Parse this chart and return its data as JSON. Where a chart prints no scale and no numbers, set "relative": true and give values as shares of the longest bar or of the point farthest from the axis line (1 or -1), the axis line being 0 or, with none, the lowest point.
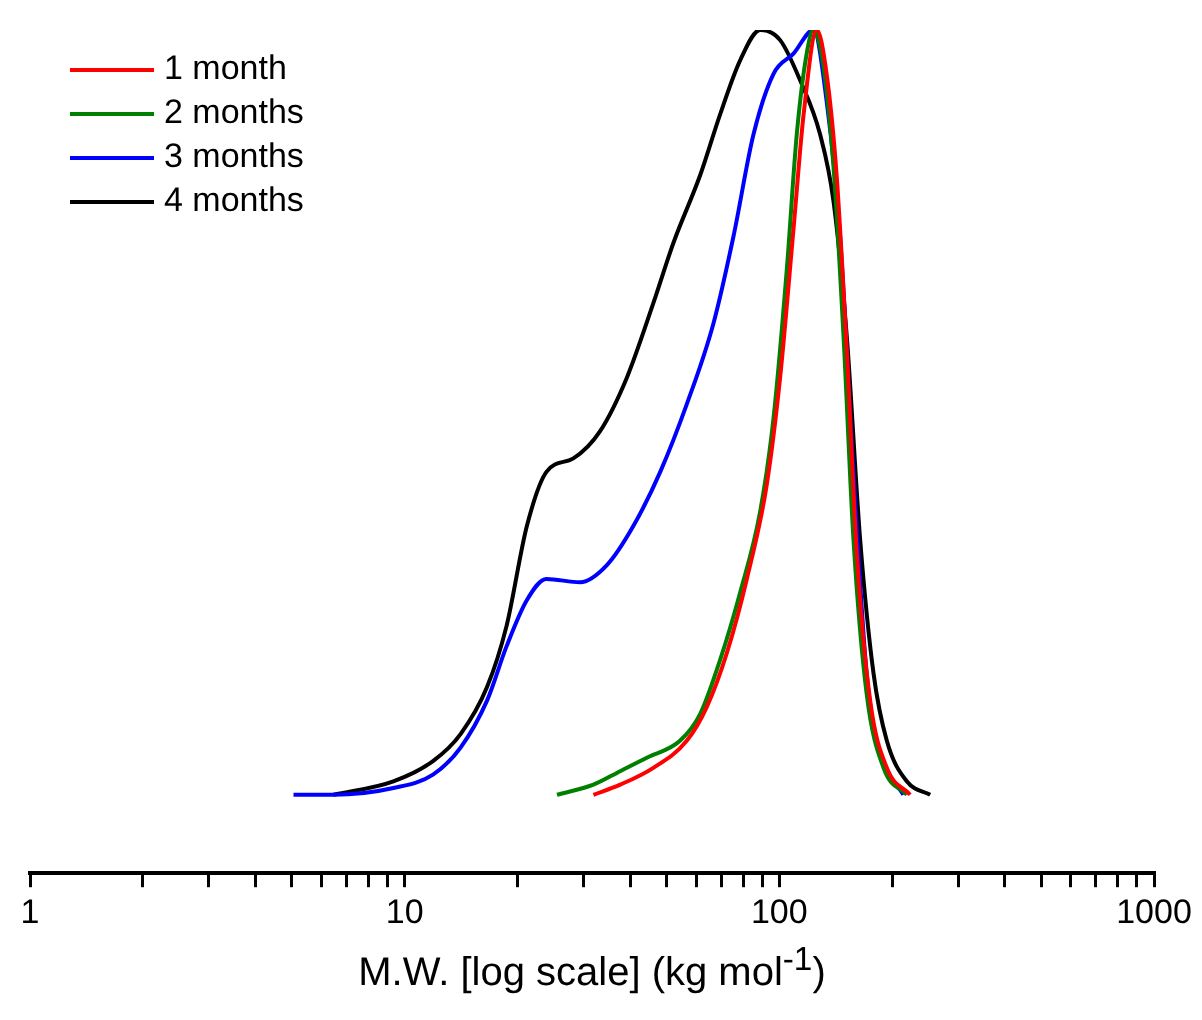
{
  "chart_data": {
    "type": "line",
    "relative": true,
    "xlabel": "M.W. [log scale] (kg mol$^{-1}$)",
    "log": "x",
    "xlim": [
      1,
      1000
    ],
    "xticks": [
      1,
      {
        "value": 2,
        "label": null
      },
      {
        "value": 3,
        "label": null
      },
      {
        "value": 4,
        "label": null
      },
      {
        "value": 5,
        "label": null
      },
      {
        "value": 6,
        "label": null
      },
      {
        "value": 7,
        "label": null
      },
      {
        "value": 8,
        "label": null
      },
      {
        "value": 9,
        "label": null
      },
      10,
      {
        "value": 20,
        "label": null
      },
      {
        "value": 30,
        "label": null
      },
      {
        "value": 40,
        "label": null
      },
      {
        "value": 50,
        "label": null
      },
      {
        "value": 60,
        "label": null
      },
      {
        "value": 70,
        "label": null
      },
      {
        "value": 80,
        "label": null
      },
      {
        "value": 90,
        "label": null
      },
      100,
      {
        "value": 200,
        "label": null
      },
      {
        "value": 300,
        "label": null
      },
      {
        "value": 400,
        "label": null
      },
      {
        "value": 500,
        "label": null
      },
      {
        "value": 600,
        "label": null
      },
      {
        "value": 700,
        "label": null
      },
      {
        "value": 800,
        "label": null
      },
      {
        "value": 900,
        "label": null
      },
      1000
    ],
    "grid": false,
    "legend": "top left",
    "marker": "none",
    "line_style": "solid",
    "tick_labels": "x",
    "series": [
      {
        "name": "1 month",
        "color": "#ff0000",
        "x": [
          31.9,
          37.6,
          46.1,
          56.6,
          64.0,
          72.4,
          81.9,
          92.5,
          100.5,
          109.1,
          116.1,
          125.9,
          133.7,
          142.2,
          151.4,
          160.9,
          174.7,
          193.6,
          223.4
        ],
        "values": [
          0.093,
          0.105,
          0.125,
          0.157,
          0.197,
          0.261,
          0.349,
          0.46,
          0.588,
          0.764,
          0.9,
          1.0,
          0.948,
          0.828,
          0.62,
          0.381,
          0.205,
          0.125,
          0.093
        ]
      },
      {
        "name": "2 months",
        "color": "#008000",
        "x": [
          25.5,
          31.9,
          37.6,
          44.3,
          54.3,
          61.5,
          69.5,
          78.6,
          88.9,
          96.5,
          104.7,
          111.3,
          118.3,
          123.4,
          131.2,
          139.6,
          148.4,
          157.7,
          171.0,
          189.7,
          218.9
        ],
        "values": [
          0.093,
          0.105,
          0.121,
          0.137,
          0.157,
          0.189,
          0.253,
          0.333,
          0.429,
          0.54,
          0.716,
          0.876,
          0.972,
          1.0,
          0.956,
          0.836,
          0.636,
          0.396,
          0.213,
          0.125,
          0.093
        ]
      },
      {
        "name": "3 months",
        "color": "#0000ff",
        "x": [
          5.05,
          6.45,
          9.33,
          11.9,
          14.1,
          16.6,
          18.7,
          21.2,
          23.9,
          29.4,
          34.6,
          40.8,
          48.1,
          56.6,
          66.7,
          75.5,
          85.3,
          96.5,
          109.1,
          123.4,
          133.7,
          145.2,
          157.7,
          171.0,
          185.8,
          214.4
        ],
        "values": [
          0.093,
          0.093,
          0.101,
          0.117,
          0.149,
          0.205,
          0.269,
          0.324,
          0.349,
          0.345,
          0.365,
          0.412,
          0.476,
          0.556,
          0.652,
          0.756,
          0.876,
          0.948,
          0.972,
          1.0,
          0.916,
          0.756,
          0.476,
          0.237,
          0.141,
          0.093
        ]
      },
      {
        "name": "4 months",
        "color": "#000000",
        "x": [
          6.45,
          9.33,
          11.9,
          14.1,
          16.6,
          18.7,
          21.2,
          23.9,
          28.2,
          33.2,
          39.2,
          46.1,
          52.2,
          61.5,
          69.5,
          78.6,
          88.9,
          100.5,
          113.7,
          128.5,
          139.6,
          151.4,
          164.3,
          178.4,
          193.6,
          218.9,
          252.7
        ],
        "values": [
          0.093,
          0.109,
          0.133,
          0.165,
          0.221,
          0.293,
          0.412,
          0.476,
          0.492,
          0.524,
          0.588,
          0.676,
          0.748,
          0.828,
          0.9,
          0.964,
          1.0,
          0.988,
          0.94,
          0.876,
          0.796,
          0.636,
          0.396,
          0.237,
          0.157,
          0.109,
          0.093
        ]
      }
    ]
  }
}
